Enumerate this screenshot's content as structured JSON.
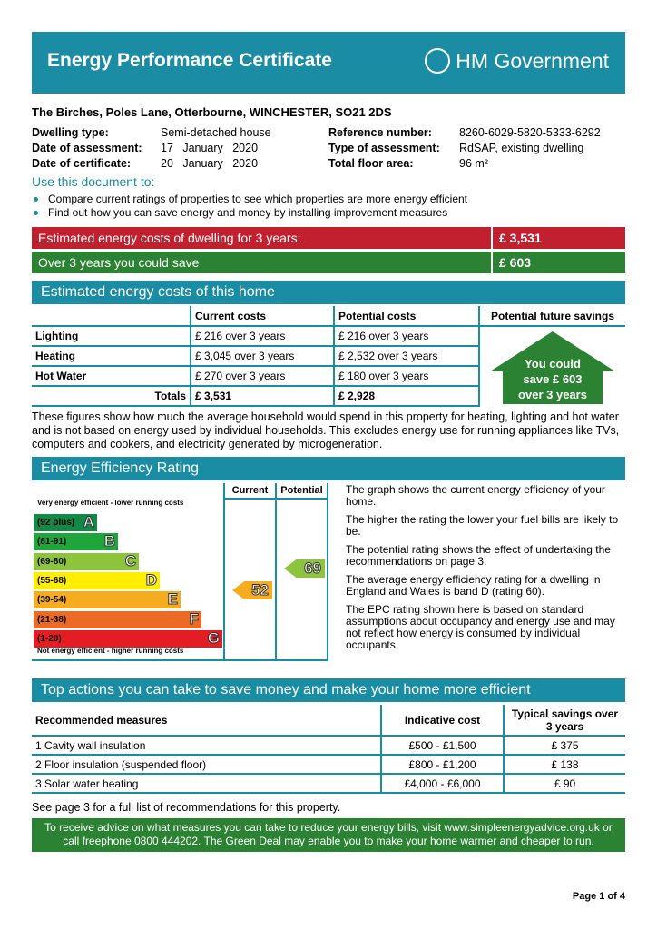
{
  "header": {
    "title": "Energy Performance Certificate",
    "logo_text": "HM Government"
  },
  "address": "The Birches, Poles Lane, Otterbourne, WINCHESTER, SO21 2DS",
  "details": {
    "dwelling_type_label": "Dwelling type:",
    "dwelling_type": "Semi-detached house",
    "assessment_date_label": "Date of assessment:",
    "assessment_date": "17   January   2020",
    "certificate_date_label": "Date of certificate:",
    "certificate_date": "20   January   2020",
    "reference_label": "Reference number:",
    "reference": "8260-6029-5820-5333-6292",
    "assessment_type_label": "Type of assessment:",
    "assessment_type": "RdSAP, existing dwelling",
    "floor_area_label": "Total floor area:",
    "floor_area": "96 m²"
  },
  "use": {
    "title": "Use this document to:",
    "bullets": [
      "Compare current ratings of properties to see which properties are more energy efficient",
      "Find out how you can save energy and money by installing improvement measures"
    ]
  },
  "summary": {
    "cost_label": "Estimated energy costs of dwelling for 3 years:",
    "cost": "£ 3,531",
    "save_label": "Over 3 years you could save",
    "save": "£ 603"
  },
  "costs": {
    "title": "Estimated energy costs of this home",
    "headers": [
      "",
      "Current costs",
      "Potential costs",
      "Potential future savings"
    ],
    "rows": [
      [
        "Lighting",
        "£ 216 over 3 years",
        "£ 216 over 3 years"
      ],
      [
        "Heating",
        "£ 3,045 over 3 years",
        "£ 2,532 over 3 years"
      ],
      [
        "Hot Water",
        "£ 270 over 3 years",
        "£ 180 over 3 years"
      ]
    ],
    "totals": [
      "Totals",
      "£ 3,531",
      "£ 2,928"
    ],
    "arrow": [
      "You could",
      "save £ 603",
      "over 3 years"
    ]
  },
  "para": "These figures show how much the average household would spend in this property for heating, lighting and hot water and is not based on energy used by individual households. This excludes energy use for running appliances like TVs, computers and cookers, and electricity generated by microgeneration.",
  "rating": {
    "title": "Energy Efficiency Rating",
    "top_label": "Very energy efficient - lower running costs",
    "bottom_label": "Not energy efficient - higher running costs",
    "current_label": "Current",
    "potential_label": "Potential",
    "current": "52",
    "potential": "69",
    "bands": [
      {
        "range": "(92 plus)",
        "letter": "A",
        "color": "#138945"
      },
      {
        "range": "(81-91)",
        "letter": "B",
        "color": "#1fa53b"
      },
      {
        "range": "(69-80)",
        "letter": "C",
        "color": "#8cc43e"
      },
      {
        "range": "(55-68)",
        "letter": "D",
        "color": "#ffee00"
      },
      {
        "range": "(39-54)",
        "letter": "E",
        "color": "#f5ac1f"
      },
      {
        "range": "(21-38)",
        "letter": "F",
        "color": "#ec6a24"
      },
      {
        "range": "(1-20)",
        "letter": "G",
        "color": "#e31d23"
      }
    ],
    "current_color": "#f5ac1f",
    "potential_color": "#8cc43e",
    "text": [
      "The graph shows the current energy efficiency of your home.",
      "The higher the rating the lower your fuel bills are likely to be.",
      "The potential rating shows the effect of undertaking the recommendations on page 3.",
      "The average energy efficiency rating for a dwelling in England and Wales is band D (rating 60).",
      "The EPC rating shown here is based on standard assumptions about occupancy and energy use and may not reflect how energy is consumed by individual occupants."
    ]
  },
  "actions": {
    "title": "Top actions you can take to save money and make your home more efficient",
    "headers": [
      "Recommended measures",
      "Indicative cost",
      "Typical savings over 3 years"
    ],
    "rows": [
      [
        "1  Cavity wall insulation",
        "£500 - £1,500",
        "£ 375"
      ],
      [
        "2  Floor insulation (suspended floor)",
        "£800 - £1,200",
        "£ 138"
      ],
      [
        "3  Solar water heating",
        "£4,000 - £6,000",
        "£ 90"
      ]
    ]
  },
  "see_page": "See page 3 for a full list of recommendations for this property.",
  "advice": "To receive advice on what measures you can take to reduce your energy bills, visit www.simpleenergyadvice.org.uk or call freephone 0800 444202. The Green Deal may enable you to make your home warmer and cheaper to run.",
  "page": "Page 1 of 4"
}
